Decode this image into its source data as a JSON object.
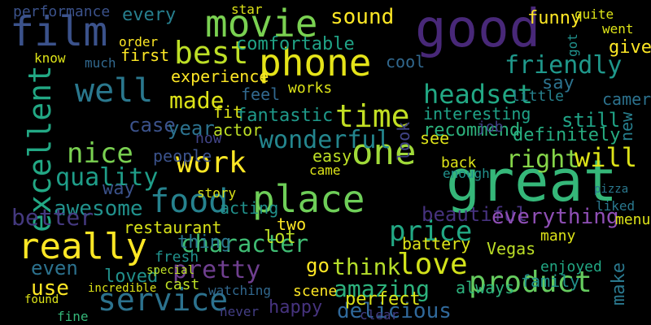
{
  "words": [
    {
      "text": "good",
      "color": "#482878"
    },
    {
      "text": "great",
      "color": "#35b779"
    },
    {
      "text": "phone",
      "color": "#e5e419"
    },
    {
      "text": "movie",
      "color": "#7ad151"
    },
    {
      "text": "film",
      "color": "#3b528b"
    },
    {
      "text": "food",
      "color": "#26828e"
    },
    {
      "text": "place",
      "color": "#6ece58"
    },
    {
      "text": "best",
      "color": "#bddf26"
    },
    {
      "text": "service",
      "color": "#2c728e"
    },
    {
      "text": "really",
      "color": "#fde725"
    },
    {
      "text": "well",
      "color": "#2a788e"
    },
    {
      "text": "one",
      "color": "#a0da39"
    },
    {
      "text": "excellent",
      "color": "#22a884"
    },
    {
      "text": "time",
      "color": "#c2df23"
    },
    {
      "text": "work",
      "color": "#fde725"
    },
    {
      "text": "love",
      "color": "#d2e21b"
    },
    {
      "text": "character",
      "color": "#3fbc73"
    },
    {
      "text": "price",
      "color": "#22a884"
    },
    {
      "text": "product",
      "color": "#65cb5e"
    },
    {
      "text": "nice",
      "color": "#7ad151"
    },
    {
      "text": "headset",
      "color": "#22a884"
    },
    {
      "text": "wonderful",
      "color": "#24868e"
    },
    {
      "text": "friendly",
      "color": "#1f988b"
    },
    {
      "text": "pretty",
      "color": "#6f3f8f"
    },
    {
      "text": "sound",
      "color": "#fde725"
    },
    {
      "text": "quality",
      "color": "#1f9e89"
    },
    {
      "text": "made",
      "color": "#dde318"
    },
    {
      "text": "amazing",
      "color": "#2db27d"
    },
    {
      "text": "think",
      "color": "#b5de2b"
    },
    {
      "text": "delicious",
      "color": "#30699b"
    },
    {
      "text": "right",
      "color": "#86d549"
    },
    {
      "text": "will",
      "color": "#dde318"
    },
    {
      "text": "happy",
      "color": "#46337e"
    },
    {
      "text": "awesome",
      "color": "#21918c"
    },
    {
      "text": "comfortable",
      "color": "#20a386"
    },
    {
      "text": "experience",
      "color": "#fde725"
    },
    {
      "text": "recommend",
      "color": "#2db27d"
    },
    {
      "text": "definitely",
      "color": "#27ad81"
    },
    {
      "text": "fantastic",
      "color": "#1f998a"
    },
    {
      "text": "interesting",
      "color": "#1fa287"
    },
    {
      "text": "beautiful",
      "color": "#46327e"
    },
    {
      "text": "everything",
      "color": "#8f4fb5"
    },
    {
      "text": "better",
      "color": "#44397f"
    },
    {
      "text": "every",
      "color": "#277f8e"
    },
    {
      "text": "first",
      "color": "#fde725"
    },
    {
      "text": "case",
      "color": "#3b528b"
    },
    {
      "text": "year",
      "color": "#2c728e"
    },
    {
      "text": "still",
      "color": "#20a386"
    },
    {
      "text": "camera",
      "color": "#2c728e"
    },
    {
      "text": "funny",
      "color": "#fde725"
    },
    {
      "text": "restaurant",
      "color": "#d8e219"
    },
    {
      "text": "even",
      "color": "#2c728e"
    },
    {
      "text": "use",
      "color": "#fde725"
    },
    {
      "text": "loved",
      "color": "#21918c"
    },
    {
      "text": "thing",
      "color": "#2a788e"
    },
    {
      "text": "people",
      "color": "#3b528b"
    },
    {
      "text": "go",
      "color": "#fde725"
    },
    {
      "text": "perfect",
      "color": "#dde318"
    },
    {
      "text": "always",
      "color": "#2db27d"
    },
    {
      "text": "family",
      "color": "#21918c"
    },
    {
      "text": "enjoyed",
      "color": "#22a884"
    },
    {
      "text": "make",
      "color": "#2a788e"
    },
    {
      "text": "new",
      "color": "#277f8e"
    },
    {
      "text": "say",
      "color": "#2c728e"
    },
    {
      "text": "give",
      "color": "#fde725"
    },
    {
      "text": "lot",
      "color": "#bddf26"
    },
    {
      "text": "two",
      "color": "#fde725"
    },
    {
      "text": "many",
      "color": "#dde318"
    },
    {
      "text": "way",
      "color": "#3b528b"
    },
    {
      "text": "actor",
      "color": "#bddf26"
    },
    {
      "text": "look",
      "color": "#414487"
    },
    {
      "text": "see",
      "color": "#dde318"
    },
    {
      "text": "cool",
      "color": "#31688e"
    },
    {
      "text": "fit",
      "color": "#dde318"
    },
    {
      "text": "feel",
      "color": "#31688e"
    },
    {
      "text": "little",
      "color": "#26828e"
    },
    {
      "text": "battery",
      "color": "#dde318"
    },
    {
      "text": "Vegas",
      "color": "#bddf26"
    },
    {
      "text": "easy",
      "color": "#bddf26"
    },
    {
      "text": "story",
      "color": "#dde318"
    },
    {
      "text": "acting",
      "color": "#21918c"
    },
    {
      "text": "job",
      "color": "#433e85"
    },
    {
      "text": "works",
      "color": "#dde318"
    },
    {
      "text": "much",
      "color": "#31688e"
    },
    {
      "text": "fine",
      "color": "#35b779"
    },
    {
      "text": "scene",
      "color": "#fde725"
    },
    {
      "text": "cast",
      "color": "#bddf26"
    },
    {
      "text": "menu",
      "color": "#dde318"
    },
    {
      "text": "liked",
      "color": "#2a788e"
    },
    {
      "text": "pizza",
      "color": "#2a788e"
    },
    {
      "text": "back",
      "color": "#dde318"
    },
    {
      "text": "enough",
      "color": "#21918c"
    },
    {
      "text": "came",
      "color": "#dde318"
    },
    {
      "text": "star",
      "color": "#dde318"
    },
    {
      "text": "order",
      "color": "#fde725"
    },
    {
      "text": "quite",
      "color": "#dde318"
    },
    {
      "text": "got",
      "color": "#21918c"
    },
    {
      "text": "went",
      "color": "#dde318"
    },
    {
      "text": "know",
      "color": "#dde318"
    },
    {
      "text": "now",
      "color": "#414487"
    },
    {
      "text": "fresh",
      "color": "#21918c"
    },
    {
      "text": "found",
      "color": "#dde318"
    },
    {
      "text": "never",
      "color": "#433e85"
    },
    {
      "text": "watching",
      "color": "#31688e"
    },
    {
      "text": "clear",
      "color": "#433e85"
    },
    {
      "text": "special",
      "color": "#bddf26"
    },
    {
      "text": "incredible",
      "color": "#dde318"
    },
    {
      "text": "performance",
      "color": "#3b528b"
    }
  ]
}
